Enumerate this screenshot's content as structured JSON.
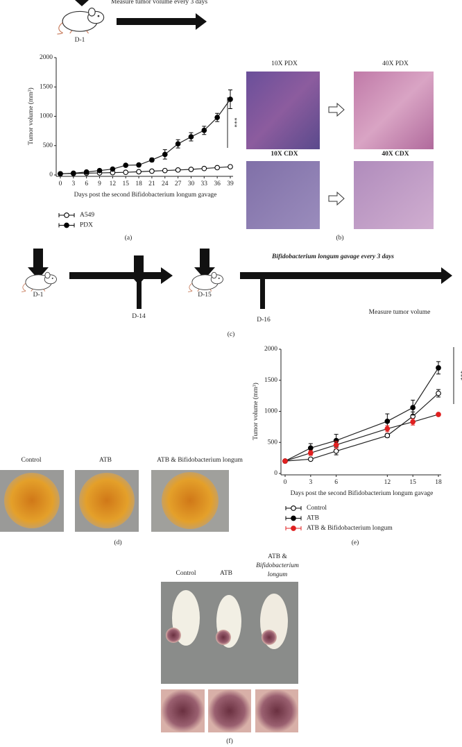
{
  "panel_labels": [
    "(a)",
    "(b)",
    "(c)",
    "(d)",
    "(e)",
    "(f)"
  ],
  "top_workflow": {
    "text": "Measure tumor volume every 3 days",
    "day": "D-1"
  },
  "panel_b": {
    "labels": [
      "10X PDX",
      "40X PDX",
      "10X CDX",
      "40X CDX"
    ]
  },
  "panel_c": {
    "days": [
      "D-1",
      "D-14",
      "D-15",
      "D-16"
    ],
    "gavage": "Bifidobacterium longum gavage every 3 days",
    "measure": "Measure tumor volume"
  },
  "panel_d": {
    "labels": [
      "Control",
      "ATB",
      "ATB & Bifidobacterium longum"
    ]
  },
  "panel_f": {
    "labels": [
      "Control",
      "ATB"
    ],
    "combined_label": [
      "ATB &",
      "Bifidobacterium",
      "longum"
    ]
  },
  "chart_data": [
    {
      "type": "line",
      "y_label": "Tumor volume (mm³)",
      "x_label": "Days post the second Bifidobacterium longum gavage",
      "x": [
        0,
        3,
        6,
        9,
        12,
        15,
        18,
        21,
        24,
        27,
        30,
        33,
        36,
        39
      ],
      "xlim": [
        0,
        39
      ],
      "xticks": [
        0,
        3,
        6,
        9,
        12,
        15,
        18,
        21,
        24,
        27,
        30,
        33,
        36,
        39
      ],
      "ylim": [
        0,
        2000
      ],
      "yticks": [
        0,
        500,
        1000,
        1500,
        2000
      ],
      "annotation": "***",
      "series": [
        {
          "name": "A549",
          "color": "#000000",
          "marker_fill": "#ffffff",
          "values": [
            20,
            25,
            30,
            35,
            40,
            45,
            55,
            65,
            75,
            85,
            95,
            110,
            125,
            140
          ],
          "errors": [
            5,
            5,
            5,
            5,
            5,
            5,
            8,
            8,
            8,
            10,
            10,
            10,
            12,
            15
          ]
        },
        {
          "name": "PDX",
          "color": "#000000",
          "marker_fill": "#000000",
          "values": [
            20,
            30,
            50,
            75,
            100,
            165,
            170,
            255,
            350,
            530,
            650,
            760,
            980,
            1290
          ],
          "errors": [
            5,
            5,
            8,
            10,
            15,
            20,
            25,
            30,
            80,
            70,
            70,
            70,
            70,
            160
          ]
        }
      ]
    },
    {
      "type": "line",
      "y_label": "Tumor volume (mm³)",
      "x_label": "Days post the second Bifidobacterium longum gavage",
      "x": [
        0,
        3,
        6,
        12,
        15,
        18
      ],
      "xlim": [
        0,
        18
      ],
      "xticks": [
        0,
        3,
        6,
        12,
        15,
        18
      ],
      "ylim": [
        0,
        2000
      ],
      "yticks": [
        0,
        500,
        1000,
        1500,
        2000
      ],
      "annotation": "***",
      "series": [
        {
          "name": "Control",
          "color": "#000000",
          "marker_fill": "#ffffff",
          "values": [
            200,
            230,
            360,
            610,
            920,
            1290
          ],
          "errors": [
            10,
            20,
            60,
            30,
            70,
            60
          ]
        },
        {
          "name": "ATB",
          "color": "#000000",
          "marker_fill": "#000000",
          "values": [
            200,
            410,
            530,
            840,
            1060,
            1700
          ],
          "errors": [
            10,
            70,
            100,
            120,
            120,
            100
          ]
        },
        {
          "name": "ATB & Bifidobacterium longum",
          "color": "#e02020",
          "marker_fill": "#e02020",
          "values": [
            200,
            330,
            460,
            720,
            830,
            950
          ],
          "errors": [
            10,
            40,
            60,
            50,
            50,
            20
          ]
        }
      ]
    }
  ]
}
